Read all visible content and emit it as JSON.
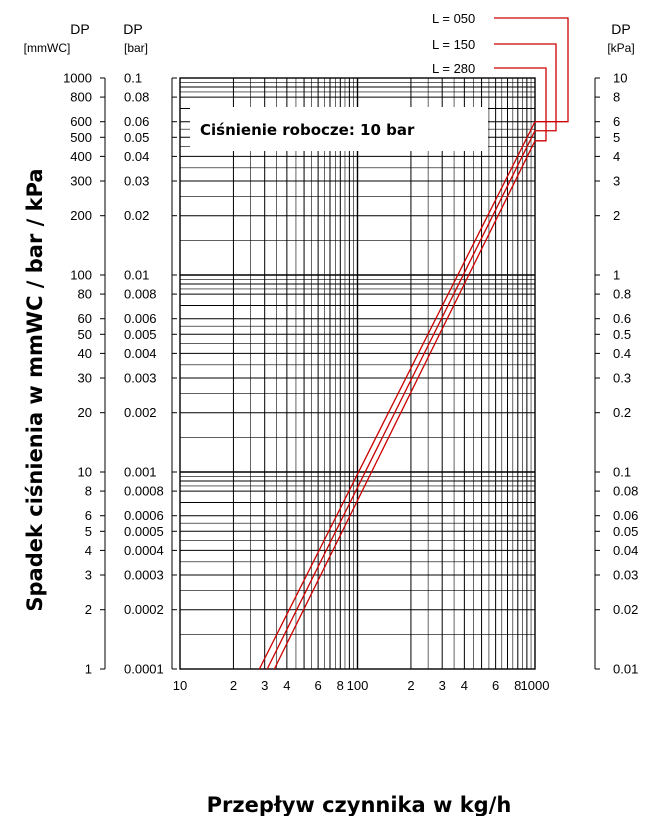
{
  "chart_data": {
    "type": "line",
    "title": "",
    "annotation": "Ciśnienie robocze: 10 bar",
    "xlabel": "Przepływ czynnika w kg/h",
    "ylabel": "Spadek ciśnienia w mmWC / bar / kPa",
    "xscale": "log",
    "yscale": "log",
    "xlim": [
      10,
      1000
    ],
    "ylim": [
      1,
      1000
    ],
    "grid": true,
    "legend_position": "top-right",
    "line_color": "#cc0000",
    "axes": {
      "left1": {
        "header": "DP",
        "unit": "[mmWC]",
        "ticks": [
          {
            "v": 1000,
            "label": "1000"
          },
          {
            "v": 800,
            "label": "800"
          },
          {
            "v": 600,
            "label": "600"
          },
          {
            "v": 500,
            "label": "500"
          },
          {
            "v": 400,
            "label": "400"
          },
          {
            "v": 300,
            "label": "300"
          },
          {
            "v": 200,
            "label": "200"
          },
          {
            "v": 100,
            "label": "100"
          },
          {
            "v": 80,
            "label": "80"
          },
          {
            "v": 60,
            "label": "60"
          },
          {
            "v": 50,
            "label": "50"
          },
          {
            "v": 40,
            "label": "40"
          },
          {
            "v": 30,
            "label": "30"
          },
          {
            "v": 20,
            "label": "20"
          },
          {
            "v": 10,
            "label": "10"
          },
          {
            "v": 8,
            "label": "8"
          },
          {
            "v": 6,
            "label": "6"
          },
          {
            "v": 5,
            "label": "5"
          },
          {
            "v": 4,
            "label": "4"
          },
          {
            "v": 3,
            "label": "3"
          },
          {
            "v": 2,
            "label": "2"
          },
          {
            "v": 1,
            "label": "1"
          }
        ]
      },
      "left2": {
        "header": "DP",
        "unit": "[bar]",
        "ticks": [
          {
            "v": 1000,
            "label": "0.1"
          },
          {
            "v": 800,
            "label": "0.08"
          },
          {
            "v": 600,
            "label": "0.06"
          },
          {
            "v": 500,
            "label": "0.05"
          },
          {
            "v": 400,
            "label": "0.04"
          },
          {
            "v": 300,
            "label": "0.03"
          },
          {
            "v": 200,
            "label": "0.02"
          },
          {
            "v": 100,
            "label": "0.01"
          },
          {
            "v": 80,
            "label": "0.008"
          },
          {
            "v": 60,
            "label": "0.006"
          },
          {
            "v": 50,
            "label": "0.005"
          },
          {
            "v": 40,
            "label": "0.004"
          },
          {
            "v": 30,
            "label": "0.003"
          },
          {
            "v": 20,
            "label": "0.002"
          },
          {
            "v": 10,
            "label": "0.001"
          },
          {
            "v": 8,
            "label": "0.0008"
          },
          {
            "v": 6,
            "label": "0.0006"
          },
          {
            "v": 5,
            "label": "0.0005"
          },
          {
            "v": 4,
            "label": "0.0004"
          },
          {
            "v": 3,
            "label": "0.0003"
          },
          {
            "v": 2,
            "label": "0.0002"
          },
          {
            "v": 1,
            "label": "0.0001"
          }
        ]
      },
      "right": {
        "header": "DP",
        "unit": "[kPa]",
        "ticks": [
          {
            "v": 1000,
            "label": "10"
          },
          {
            "v": 800,
            "label": "8"
          },
          {
            "v": 600,
            "label": "6"
          },
          {
            "v": 500,
            "label": "5"
          },
          {
            "v": 400,
            "label": "4"
          },
          {
            "v": 300,
            "label": "3"
          },
          {
            "v": 200,
            "label": "2"
          },
          {
            "v": 100,
            "label": "1"
          },
          {
            "v": 80,
            "label": "0.8"
          },
          {
            "v": 60,
            "label": "0.6"
          },
          {
            "v": 50,
            "label": "0.5"
          },
          {
            "v": 40,
            "label": "0.4"
          },
          {
            "v": 30,
            "label": "0.3"
          },
          {
            "v": 20,
            "label": "0.2"
          },
          {
            "v": 10,
            "label": "0.1"
          },
          {
            "v": 8,
            "label": "0.08"
          },
          {
            "v": 6,
            "label": "0.06"
          },
          {
            "v": 5,
            "label": "0.05"
          },
          {
            "v": 4,
            "label": "0.04"
          },
          {
            "v": 3,
            "label": "0.03"
          },
          {
            "v": 2,
            "label": "0.02"
          },
          {
            "v": 1,
            "label": "0.01"
          }
        ]
      },
      "x": {
        "ticks": [
          {
            "v": 10,
            "label": "10"
          },
          {
            "v": 20,
            "label": "2"
          },
          {
            "v": 30,
            "label": "3"
          },
          {
            "v": 40,
            "label": "4"
          },
          {
            "v": 60,
            "label": "6"
          },
          {
            "v": 80,
            "label": "8"
          },
          {
            "v": 100,
            "label": "100"
          },
          {
            "v": 200,
            "label": "2"
          },
          {
            "v": 300,
            "label": "3"
          },
          {
            "v": 400,
            "label": "4"
          },
          {
            "v": 600,
            "label": "6"
          },
          {
            "v": 800,
            "label": "8"
          },
          {
            "v": 1000,
            "label": "1000"
          }
        ]
      }
    },
    "series": [
      {
        "name": "L = 050",
        "x": [
          28,
          1000
        ],
        "y": [
          1,
          600
        ]
      },
      {
        "name": "L = 150",
        "x": [
          31,
          1000
        ],
        "y": [
          1,
          540
        ]
      },
      {
        "name": "L = 280",
        "x": [
          34,
          1000
        ],
        "y": [
          1,
          480
        ]
      }
    ]
  }
}
